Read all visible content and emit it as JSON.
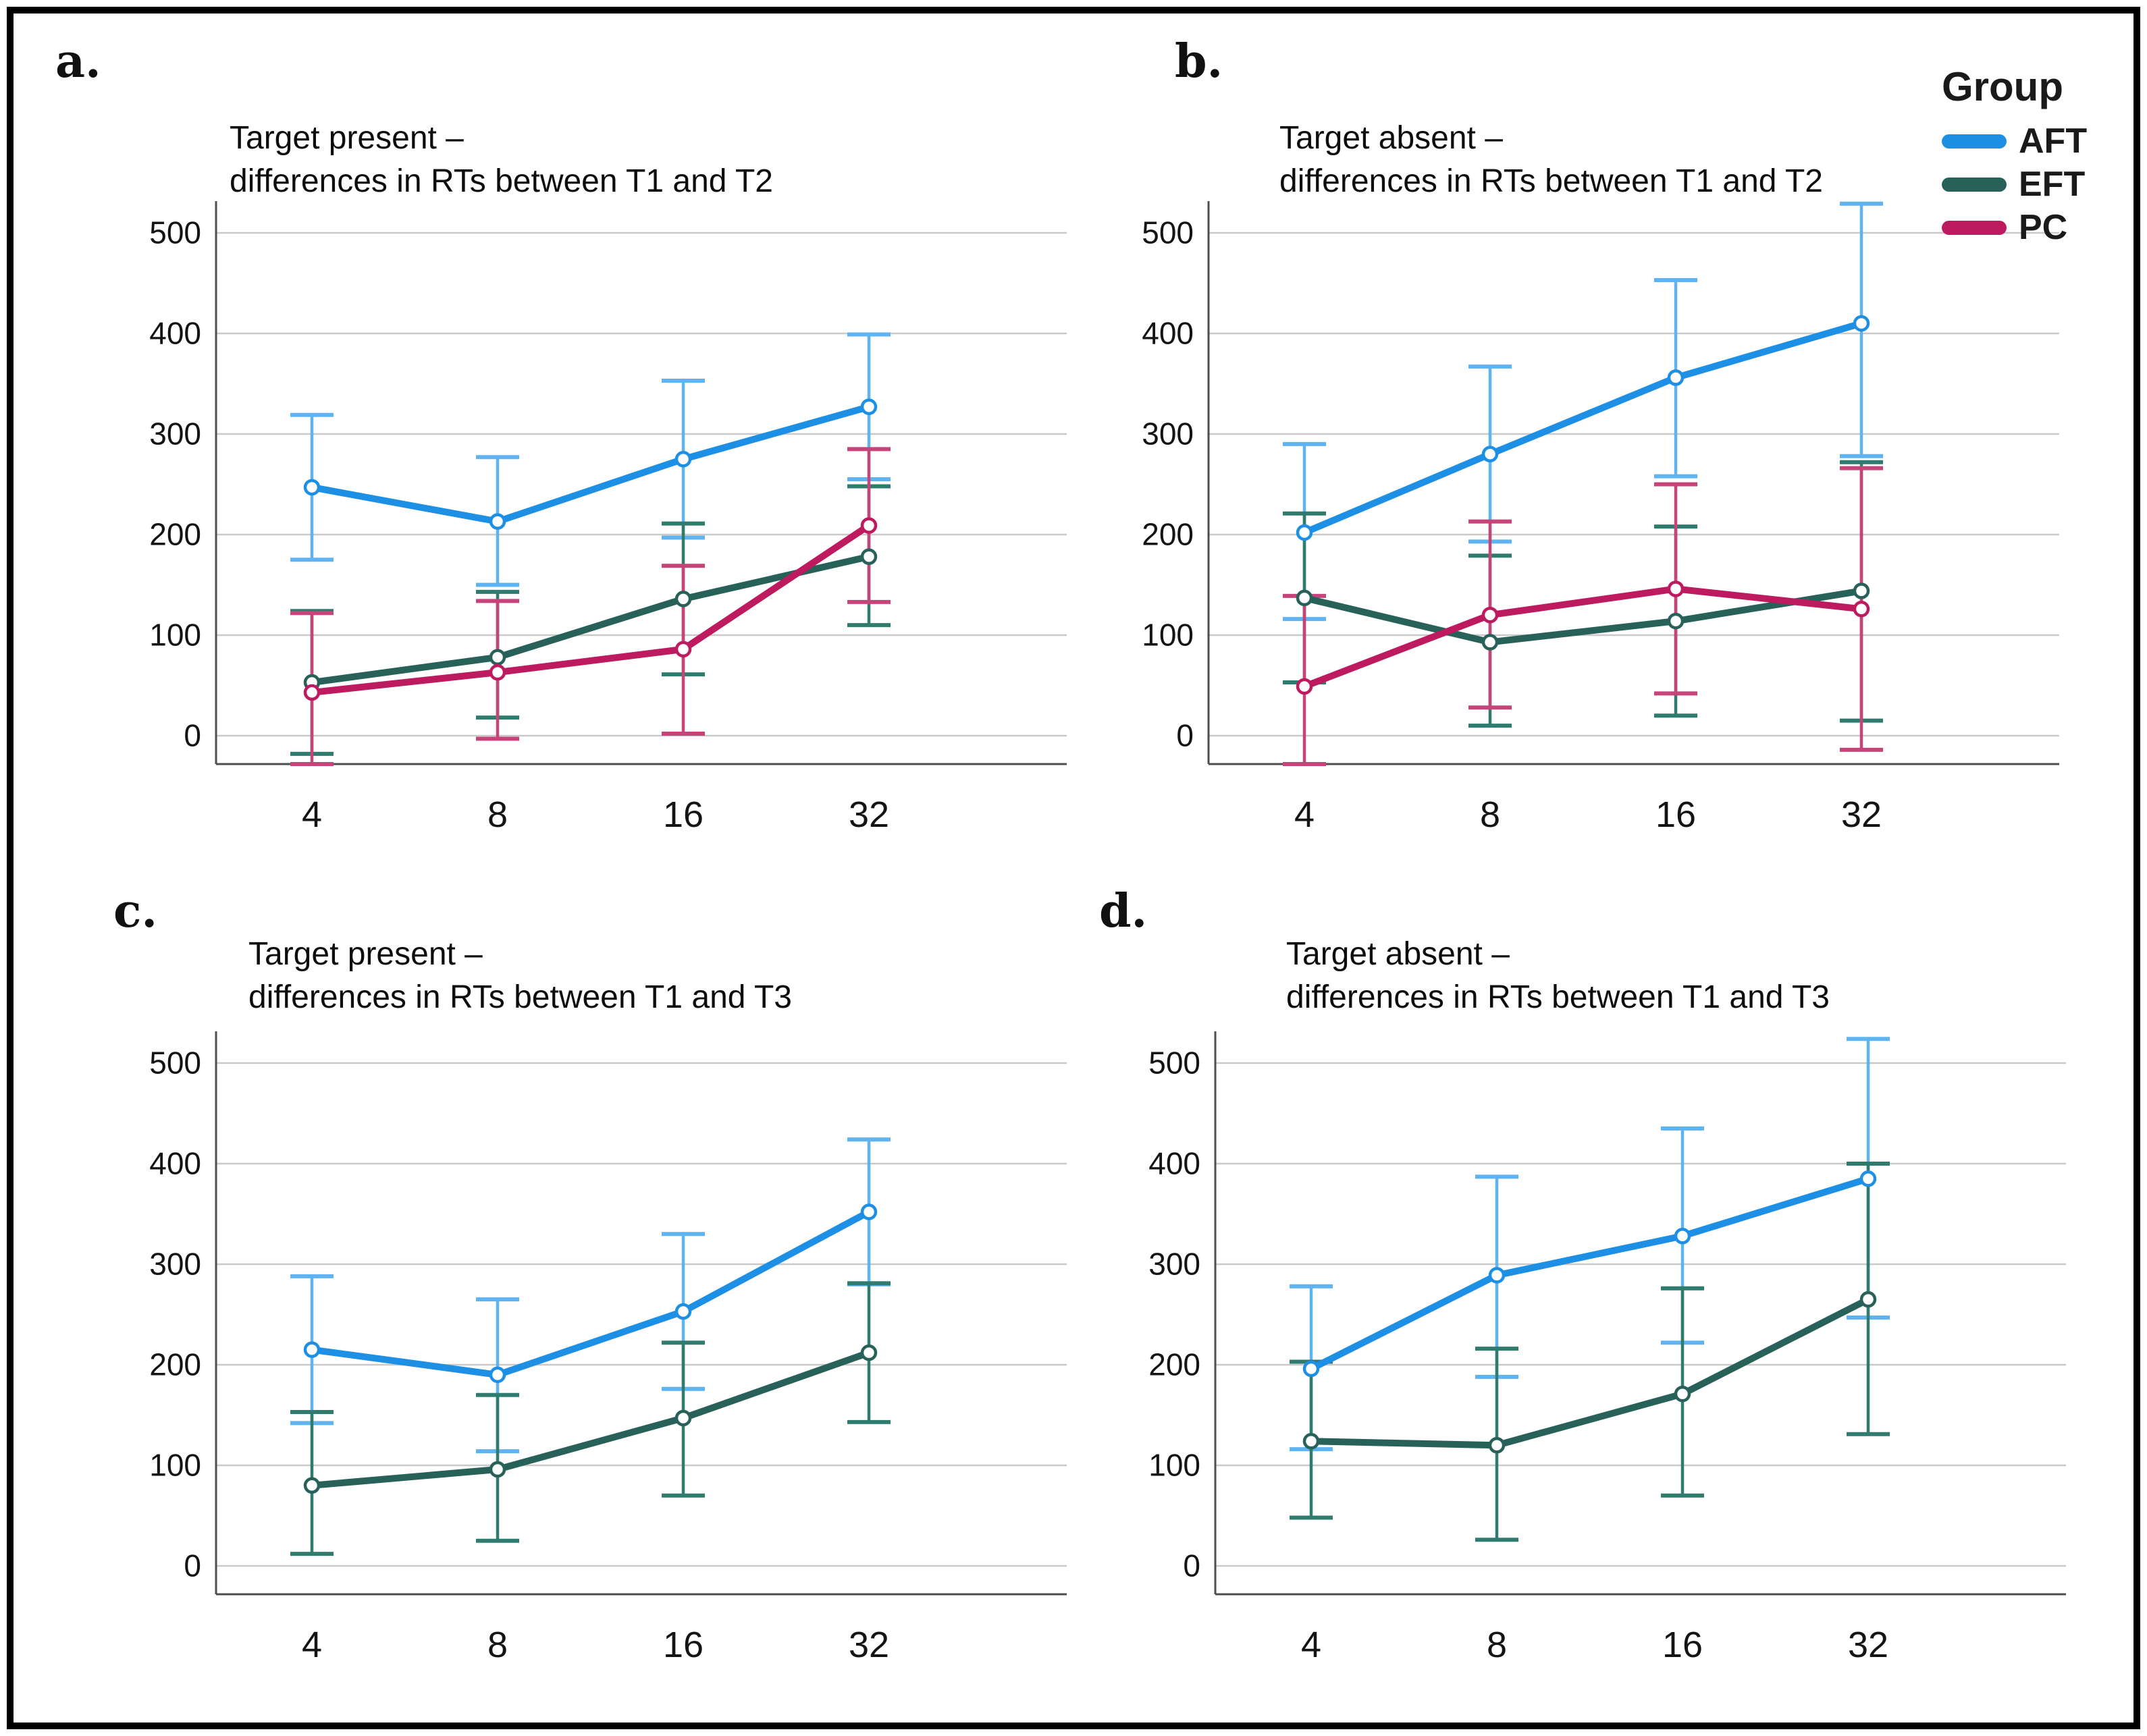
{
  "figure": {
    "legend": {
      "title": "Group",
      "items": [
        {
          "label": "AFT",
          "color": "#1D8FE4"
        },
        {
          "label": "EFT",
          "color": "#27615A"
        },
        {
          "label": "PC",
          "color": "#BE1A5F"
        }
      ]
    }
  },
  "chart_data": [
    {
      "type": "line",
      "panel_label": "a.",
      "title_lines": [
        "Target present –",
        "differences in RTs between T1 and T2"
      ],
      "categories": [
        "4",
        "8",
        "16",
        "32"
      ],
      "y_ticks": [
        0,
        100,
        200,
        300,
        400,
        500
      ],
      "ylim": [
        -28,
        532
      ],
      "grid": true,
      "legend_position": "figure-top-right",
      "series": [
        {
          "name": "AFT",
          "color": "#1D8FE4",
          "error_color": "#5FB3F0",
          "values": [
            247,
            213,
            275,
            327
          ],
          "err_lo": [
            175,
            150,
            197,
            255
          ],
          "err_hi": [
            319,
            277,
            353,
            399
          ]
        },
        {
          "name": "EFT",
          "color": "#27615A",
          "error_color": "#2F7C6E",
          "values": [
            53,
            78,
            136,
            178
          ],
          "err_lo": [
            -18,
            18,
            61,
            110
          ],
          "err_hi": [
            124,
            143,
            211,
            248
          ]
        },
        {
          "name": "PC",
          "color": "#BE1A5F",
          "error_color": "#C64479",
          "values": [
            43,
            63,
            86,
            209
          ],
          "err_lo": [
            -30,
            -3,
            2,
            133
          ],
          "err_hi": [
            122,
            134,
            169,
            285
          ]
        }
      ]
    },
    {
      "type": "line",
      "panel_label": "b.",
      "title_lines": [
        "Target absent –",
        "differences in RTs between T1 and T2"
      ],
      "categories": [
        "4",
        "8",
        "16",
        "32"
      ],
      "y_ticks": [
        0,
        100,
        200,
        300,
        400,
        500
      ],
      "ylim": [
        -28,
        532
      ],
      "grid": true,
      "legend_position": "figure-top-right",
      "series": [
        {
          "name": "AFT",
          "color": "#1D8FE4",
          "error_color": "#5FB3F0",
          "values": [
            202,
            280,
            356,
            410
          ],
          "err_lo": [
            116,
            193,
            258,
            278
          ],
          "err_hi": [
            290,
            367,
            453,
            529
          ]
        },
        {
          "name": "EFT",
          "color": "#27615A",
          "error_color": "#2F7C6E",
          "values": [
            137,
            93,
            114,
            144
          ],
          "err_lo": [
            53,
            10,
            20,
            15
          ],
          "err_hi": [
            221,
            179,
            208,
            272
          ]
        },
        {
          "name": "PC",
          "color": "#BE1A5F",
          "error_color": "#C64479",
          "values": [
            49,
            120,
            146,
            126
          ],
          "err_lo": [
            -40,
            28,
            42,
            -14
          ],
          "err_hi": [
            139,
            213,
            250,
            266
          ]
        }
      ]
    },
    {
      "type": "line",
      "panel_label": "c.",
      "title_lines": [
        "Target present –",
        "differences in RTs between T1 and T3"
      ],
      "categories": [
        "4",
        "8",
        "16",
        "32"
      ],
      "y_ticks": [
        0,
        100,
        200,
        300,
        400,
        500
      ],
      "ylim": [
        -28,
        532
      ],
      "grid": true,
      "legend_position": "figure-top-right",
      "series": [
        {
          "name": "AFT",
          "color": "#1D8FE4",
          "error_color": "#5FB3F0",
          "values": [
            215,
            190,
            253,
            352
          ],
          "err_lo": [
            142,
            114,
            176,
            280
          ],
          "err_hi": [
            288,
            265,
            330,
            424
          ]
        },
        {
          "name": "EFT",
          "color": "#27615A",
          "error_color": "#2F7C6E",
          "values": [
            80,
            96,
            147,
            212
          ],
          "err_lo": [
            12,
            25,
            70,
            143
          ],
          "err_hi": [
            153,
            170,
            222,
            281
          ]
        }
      ]
    },
    {
      "type": "line",
      "panel_label": "d.",
      "title_lines": [
        "Target absent –",
        "differences in RTs between T1 and T3"
      ],
      "categories": [
        "4",
        "8",
        "16",
        "32"
      ],
      "y_ticks": [
        0,
        100,
        200,
        300,
        400,
        500
      ],
      "ylim": [
        -28,
        532
      ],
      "grid": true,
      "legend_position": "figure-top-right",
      "series": [
        {
          "name": "AFT",
          "color": "#1D8FE4",
          "error_color": "#5FB3F0",
          "values": [
            196,
            289,
            328,
            385
          ],
          "err_lo": [
            116,
            188,
            222,
            247
          ],
          "err_hi": [
            278,
            387,
            435,
            524
          ]
        },
        {
          "name": "EFT",
          "color": "#27615A",
          "error_color": "#2F7C6E",
          "values": [
            124,
            120,
            171,
            265
          ],
          "err_lo": [
            48,
            26,
            70,
            131
          ],
          "err_hi": [
            203,
            216,
            276,
            400
          ]
        }
      ]
    }
  ]
}
